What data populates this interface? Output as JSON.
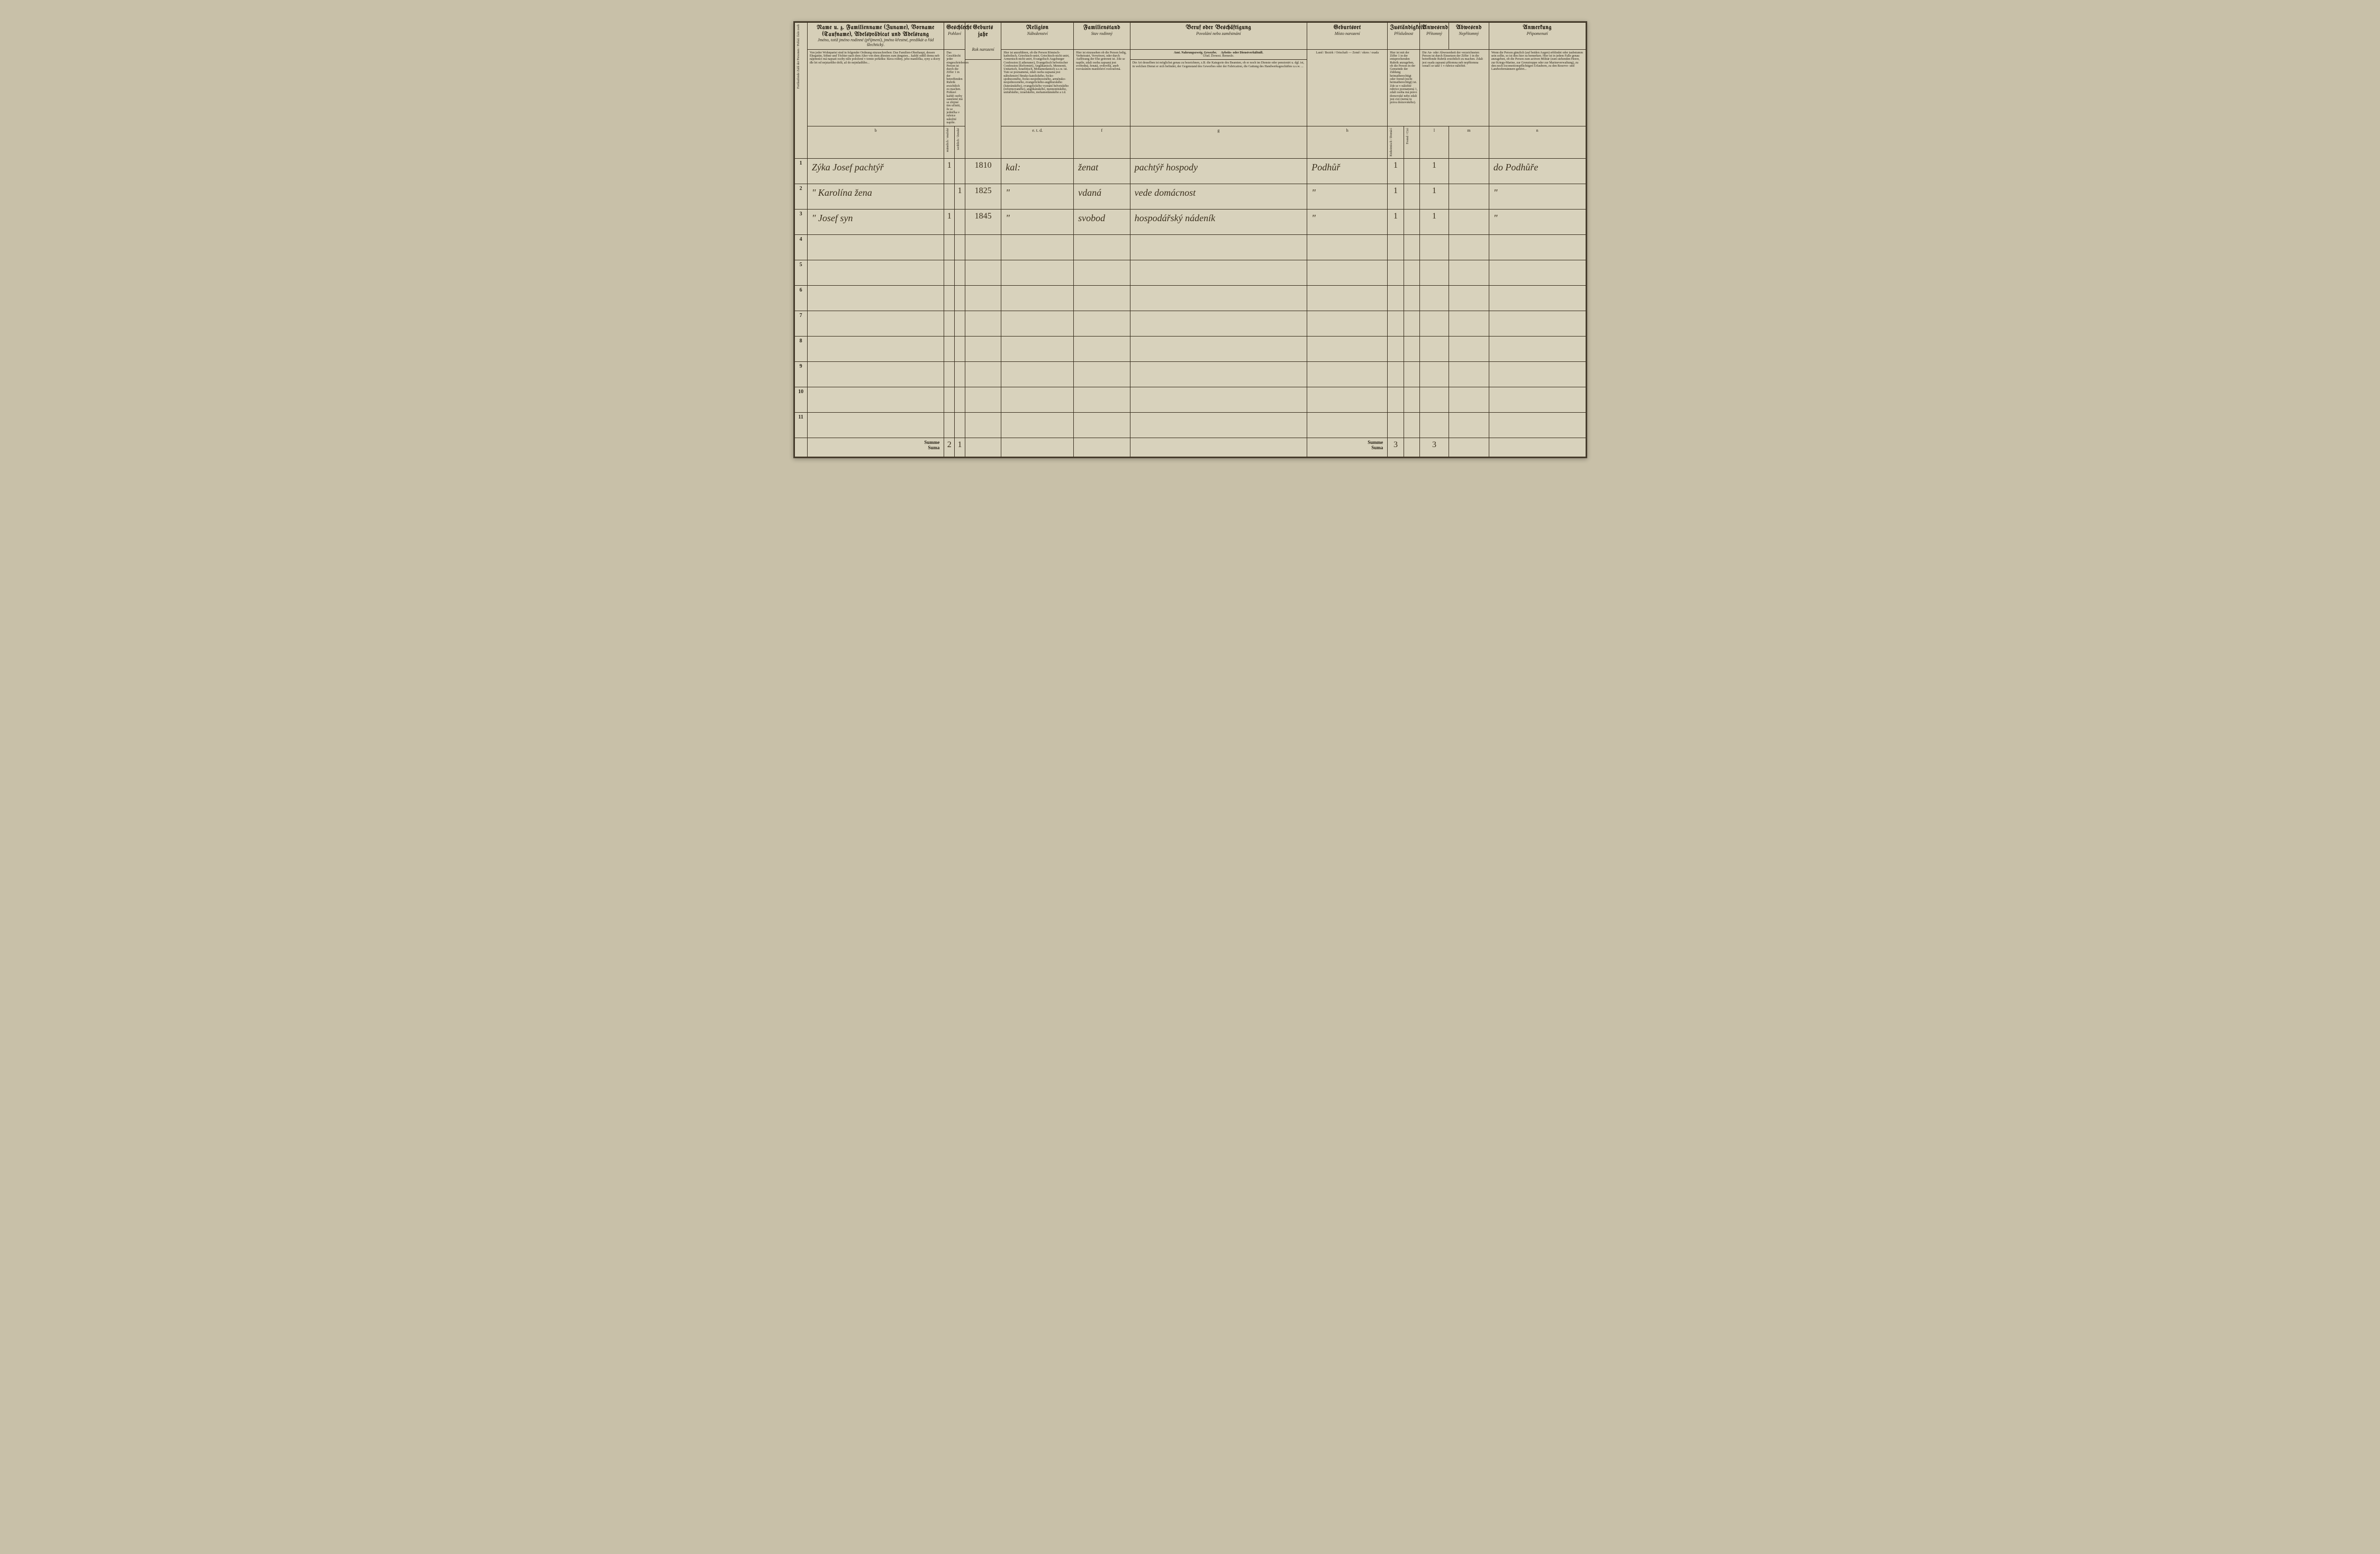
{
  "headers": {
    "name_de": "Name u. z. Familienname (Zuname), Vorname (Taufname), Adelsprädicat und Adelsrang",
    "name_cz": "Jméno, totiž jméno rodinné (příjmení), jméno křestné, predikát a řád šlechtický.",
    "name_instr": "Von jeder Wohnpartei sind in folgender Ordnung einzuschreiben: Das Familien-Oberhaupt, dessen Ehegattin, Söhne und Töchter nach dem Alter von dem ältesten zum jüngsten... každý oddíl domu neb nájemníci má napsati osoby níže položené v tomto pořádku: hlava rodiny, jeho manželka, syny a dcery dle let od nejstaršího dolů, až do nejmladšího...",
    "sex_de": "Geschlecht",
    "sex_cz": "Pohlaví",
    "sex_instr": "Das Geschlecht jeder eingeschriebenen Person ist durch die Ziffer 1 in der betreffenden Rubrik ersichtlich zu machen. Pohlaví každé osoby zanešené má se zřejmé tím učiniti, že se jednička v rubrice náležité napíše.",
    "sex_m": "männlich / mužské",
    "sex_f": "weiblich / ženské",
    "year_de": "Geburts jahr",
    "year_cz": "Rok narození",
    "relig_de": "Religion",
    "relig_cz": "Náboženství",
    "relig_instr": "Hier ist anzuführen, ob die Person Römisch-katholisch, Griechisch-unirt, Griechisch-nicht unirt, Armenisch-nicht unirt, Evangelisch Augsburger Confession (Lutheraner), Evangelisch helvetischer Confession (Reformirt), Anglikanisch, Mennonit, Unitarisch, Israelitisch, Mohamedanisch u.s.w. ist. Tuto se poznamená, zdali osoba zapsaná jest náboženství římsko-katolického, řecko-sjednoceného, řecko-nesjednoceného, arménsko-nesjednoceného, evangelického-augšburského (luteránského), evangelického vyznání helvetského (reformovaného), anglikánského, mennonitského, unitářského, izraelského, mohamedánského a t.d.",
    "stand_de": "Familienstand",
    "stand_cz": "Stav rodinný",
    "stand_instr": "Hier ist einzusehen ob die Person ledig, Verheiratet, Verwitwet, oder durch Auflösung der Ehe getrennt ist. Zde se napíše, zdali osoba zapsaná jest svobodná, ženatá, ovdovělá, aneb rozvázáním manželství rozloučená.",
    "occ_de": "Beruf oder Beschäftigung",
    "occ_cz": "Povolání nebo zaměstnání",
    "occ_sub1_de": "Amt. Nahrungszweig. Gewerbe.",
    "occ_sub1_cz": "Úřad. Živnost. Řemeslo.",
    "occ_sub2_de": "Arbeits- oder Dienstverhältniß.",
    "occ_instr": "Die Art desselben ist möglichst genau zu bezeichnen, z.B. die Kategorie des Beamten, ob er noch im Dienste oder pensionirt u. dgl. ist, in welchen Dienst er sich befindet, der Gegenstand des Gewerbes oder der Fabrication, die Gattung des Handwerksgeschäftes u.s.w. ...",
    "birth_de": "Geburtsort",
    "birth_cz": "Místo narození",
    "birth_sub": "Land / Bezirk / Ortschaft — Země / okres / osada",
    "zust_de": "Zuständigkeit",
    "zust_cz": "Příslušnost",
    "zust_instr": "Hier ist mit der Ziffer 1 in der entsprechenden Rubrik anzugeben, ob die Person in der Gemeinde der Zählung heimatberechtigt oder fremd (nicht heimatberechtigt) ist. Zde se v náležité rubrice poznamená 1, zdali osoba má právo domovské nebo zdali jest cizí (nemá tu práva domovského).",
    "zust_a": "Einheimisch / Domácí",
    "zust_b": "Fremd / Cizí",
    "anw_de": "Anwesend",
    "anw_cz": "Přítomný",
    "abw_de": "Abwesend",
    "abw_cz": "Nepřítomný",
    "anw_instr": "Die An- oder Abwesenheit der verzeichneten Person ist durch Einsetzen der Ziffer 1 in die betreffende Rubrik ersichtlich zu machen. Zdali jest osada zapsaná přítomna neb nepřítomna označí se také 1 v rubrice náležité.",
    "note_de": "Anmerkung",
    "note_cz": "Připomenutí",
    "note_instr": "Wenn die Person gänzlich (auf beiden Augen) erblindet oder taubstumm sein sollte, so ist dies hier zu bemerken. Hier ist in jedem Falle genau anzugeben, ob die Person zum activen Militär (zum stehenden Heere, zur Kriegs-Marine, zur Grenztruppe oder zur Marineverwaltung), zu den noch locomotionspflichtigen Urlaubern, zu den Reserve- und Landwehrmännern gehört..."
  },
  "rows": [
    {
      "num": "1",
      "name": "Zýka Josef pachtýř",
      "sex_m": "1",
      "sex_f": "",
      "year": "1810",
      "relig": "kal:",
      "stand": "ženat",
      "occ": "pachtýř hospody",
      "birth": "Podhůř",
      "zust_a": "1",
      "zust_b": "",
      "anw": "1",
      "abw": "",
      "note": "do Podhůře"
    },
    {
      "num": "2",
      "name": "\"   Karolína žena",
      "sex_m": "",
      "sex_f": "1",
      "year": "1825",
      "relig": "\"",
      "stand": "vdaná",
      "occ": "vede domácnost",
      "birth": "\"",
      "zust_a": "1",
      "zust_b": "",
      "anw": "1",
      "abw": "",
      "note": "\""
    },
    {
      "num": "3",
      "name": "\"   Josef syn",
      "sex_m": "1",
      "sex_f": "",
      "year": "1845",
      "relig": "\"",
      "stand": "svobod",
      "occ": "hospodářský nádeník",
      "birth": "\"",
      "zust_a": "1",
      "zust_b": "",
      "anw": "1",
      "abw": "",
      "note": "\""
    }
  ],
  "empty_rows": [
    "4",
    "5",
    "6",
    "7",
    "8",
    "9",
    "10",
    "11"
  ],
  "sum": {
    "label_de": "Summe",
    "label_cz": "Suma",
    "sex_m": "2",
    "sex_f": "1",
    "zust_a": "3",
    "anw": "3"
  }
}
